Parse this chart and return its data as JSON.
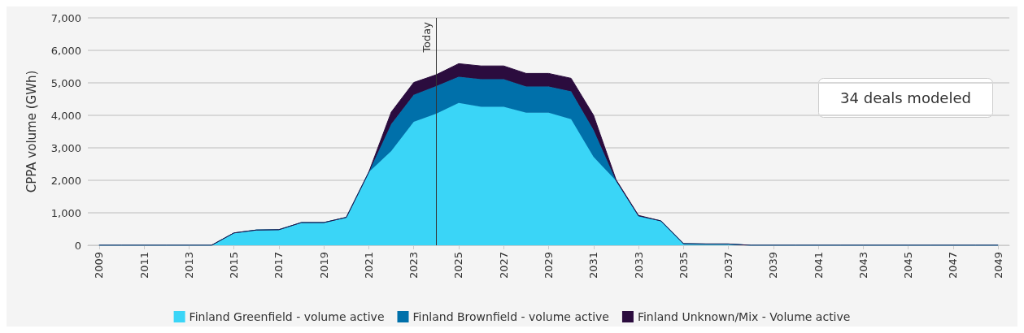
{
  "chart_data": {
    "type": "area",
    "stacked": true,
    "ylabel": "CPPA volume (GWh)",
    "x": [
      2009,
      2010,
      2011,
      2012,
      2013,
      2014,
      2015,
      2016,
      2017,
      2018,
      2019,
      2020,
      2021,
      2022,
      2023,
      2024,
      2025,
      2026,
      2027,
      2028,
      2029,
      2030,
      2031,
      2032,
      2033,
      2034,
      2035,
      2036,
      2037,
      2038,
      2039,
      2040,
      2041,
      2042,
      2043,
      2044,
      2045,
      2046,
      2047,
      2048,
      2049
    ],
    "xlim": [
      2008.5,
      2049.5
    ],
    "xticks": [
      2009,
      2011,
      2013,
      2015,
      2017,
      2019,
      2021,
      2023,
      2025,
      2027,
      2029,
      2031,
      2033,
      2035,
      2037,
      2039,
      2041,
      2043,
      2045,
      2047,
      2049
    ],
    "ylim": [
      0,
      7000
    ],
    "yticks": [
      0,
      {
        "value": 1000,
        "label": "1,000"
      },
      {
        "value": 2000,
        "label": "2,000"
      },
      {
        "value": 3000,
        "label": "3,000"
      },
      {
        "value": 4000,
        "label": "4,000"
      },
      {
        "value": 5000,
        "label": "5,000"
      },
      {
        "value": 6000,
        "label": "6,000"
      },
      {
        "value": 7000,
        "label": "7,000"
      }
    ],
    "series": [
      {
        "name": "Finland Greenfield - volume active",
        "color": "#3ad5f7",
        "values": [
          0,
          0,
          0,
          0,
          0,
          0,
          380,
          470,
          480,
          700,
          700,
          860,
          2250,
          2900,
          3800,
          4050,
          4380,
          4260,
          4260,
          4080,
          4080,
          3880,
          2720,
          1990,
          900,
          750,
          50,
          40,
          40,
          0,
          0,
          0,
          0,
          0,
          0,
          0,
          0,
          0,
          0,
          0,
          0
        ]
      },
      {
        "name": "Finland Brownfield - volume active",
        "color": "#0070aa",
        "values": [
          0,
          0,
          0,
          0,
          0,
          0,
          0,
          0,
          0,
          0,
          0,
          0,
          0,
          830,
          830,
          850,
          810,
          850,
          850,
          810,
          810,
          860,
          830,
          0,
          0,
          0,
          0,
          0,
          0,
          0,
          0,
          0,
          0,
          0,
          0,
          0,
          0,
          0,
          0,
          0,
          0
        ]
      },
      {
        "name": "Finland Unknown/Mix - Volume active",
        "color": "#2b0c3e",
        "values": [
          0,
          0,
          0,
          0,
          0,
          0,
          0,
          0,
          0,
          0,
          0,
          0,
          0,
          370,
          380,
          350,
          400,
          410,
          410,
          400,
          400,
          400,
          450,
          30,
          20,
          0,
          0,
          0,
          0,
          0,
          0,
          0,
          0,
          0,
          0,
          0,
          0,
          0,
          0,
          0,
          0
        ]
      }
    ],
    "ref_lines": [
      {
        "axis": "x",
        "value": 2024,
        "label": "Today",
        "color": "#333333"
      }
    ],
    "annotations": [
      "34 deals modeled"
    ],
    "grid": "y",
    "legend": "bottom"
  }
}
